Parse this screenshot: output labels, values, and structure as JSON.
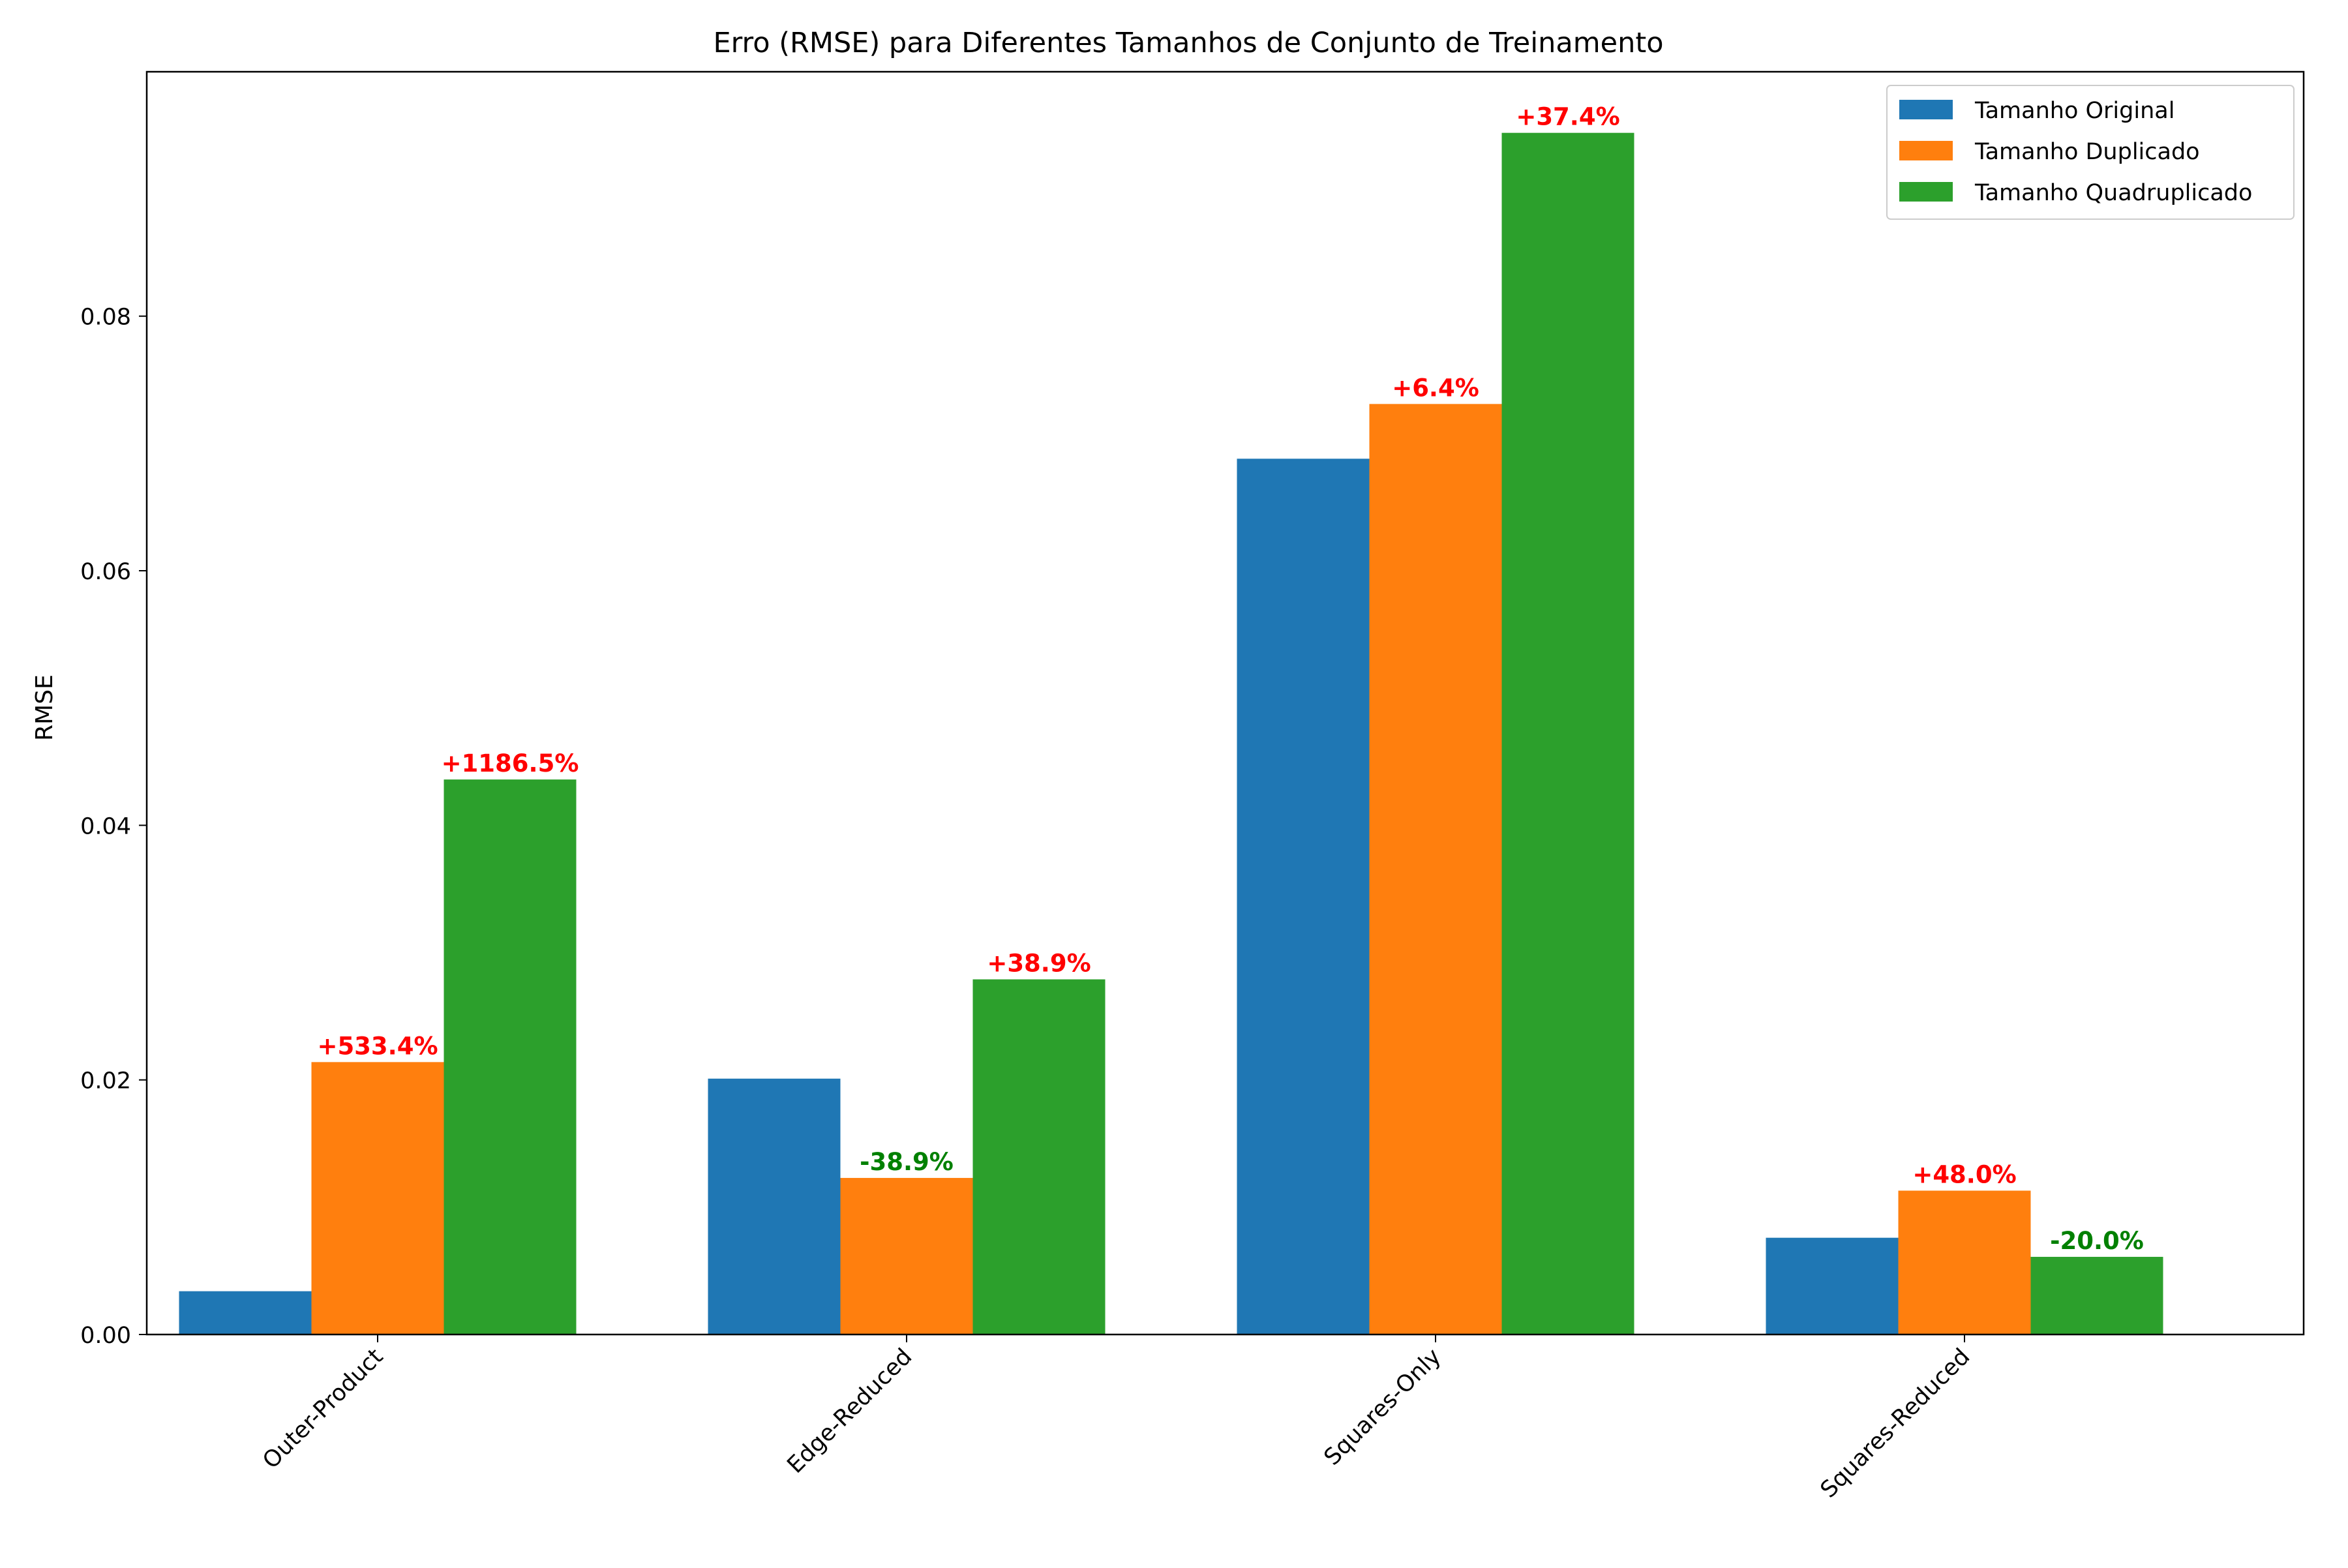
{
  "chart_data": {
    "type": "bar",
    "title": "Erro (RMSE) para Diferentes Tamanhos de Conjunto de Treinamento",
    "xlabel": "",
    "ylabel": "RMSE",
    "ylim": [
      0,
      0.0992
    ],
    "yticks": [
      0.0,
      0.02,
      0.04,
      0.06,
      0.08
    ],
    "ytick_labels": [
      "0.00",
      "0.02",
      "0.04",
      "0.06",
      "0.08"
    ],
    "grid": false,
    "legend_position": "top-right",
    "categories": [
      "Outer-Product",
      "Edge-Reduced",
      "Squares-Only",
      "Squares-Reduced"
    ],
    "series": [
      {
        "name": "Tamanho Original",
        "color": "#1f77b4",
        "values": [
          0.0034,
          0.0201,
          0.0688,
          0.0076
        ]
      },
      {
        "name": "Tamanho Duplicado",
        "color": "#ff7f0e",
        "values": [
          0.0214,
          0.0123,
          0.0731,
          0.0113
        ]
      },
      {
        "name": "Tamanho Quadruplicado",
        "color": "#2ca02c",
        "values": [
          0.0436,
          0.0279,
          0.0944,
          0.0061
        ]
      }
    ],
    "annotations": [
      {
        "category_index": 0,
        "series_index": 1,
        "text": "+533.4%",
        "color": "#ff0000"
      },
      {
        "category_index": 0,
        "series_index": 2,
        "text": "+1186.5%",
        "color": "#ff0000"
      },
      {
        "category_index": 1,
        "series_index": 1,
        "text": "-38.9%",
        "color": "#008000"
      },
      {
        "category_index": 1,
        "series_index": 2,
        "text": "+38.9%",
        "color": "#ff0000"
      },
      {
        "category_index": 2,
        "series_index": 1,
        "text": "+6.4%",
        "color": "#ff0000"
      },
      {
        "category_index": 2,
        "series_index": 2,
        "text": "+37.4%",
        "color": "#ff0000"
      },
      {
        "category_index": 3,
        "series_index": 1,
        "text": "+48.0%",
        "color": "#ff0000"
      },
      {
        "category_index": 3,
        "series_index": 2,
        "text": "-20.0%",
        "color": "#008000"
      }
    ]
  }
}
